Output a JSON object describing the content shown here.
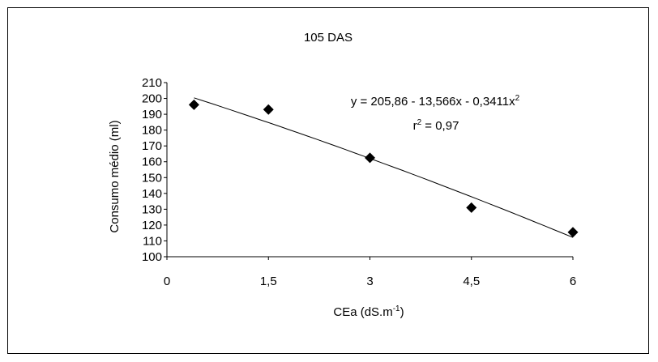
{
  "chart_data": {
    "type": "scatter",
    "title": "105 DAS",
    "xlabel": {
      "base": "CEa (dS.m",
      "sup": "-1",
      "tail": ")"
    },
    "ylabel": "Consumo médio (ml)",
    "x_ticks": [
      "0",
      "1,5",
      "3",
      "4,5",
      "6"
    ],
    "y_ticks": [
      "100",
      "110",
      "120",
      "130",
      "140",
      "150",
      "160",
      "170",
      "180",
      "190",
      "200",
      "210"
    ],
    "xlim": [
      0,
      6
    ],
    "ylim": [
      100,
      210
    ],
    "grid": false,
    "series": [
      {
        "marker": "diamond",
        "x": [
          0.4,
          1.5,
          3.0,
          4.5,
          6.0
        ],
        "y": [
          196,
          193,
          162.5,
          131,
          115.5
        ]
      }
    ],
    "trendline": {
      "type": "polynomial",
      "coefficients": [
        205.86,
        -13.566,
        -0.3411
      ],
      "x_range": [
        0.4,
        6.0
      ]
    },
    "equation": {
      "line1": "y = 205,86 - 13,566x - 0,3411x",
      "line1_sup": "2"
    },
    "r_squared": {
      "prefix": "r",
      "sup": "2",
      "value": " = 0,97"
    }
  }
}
